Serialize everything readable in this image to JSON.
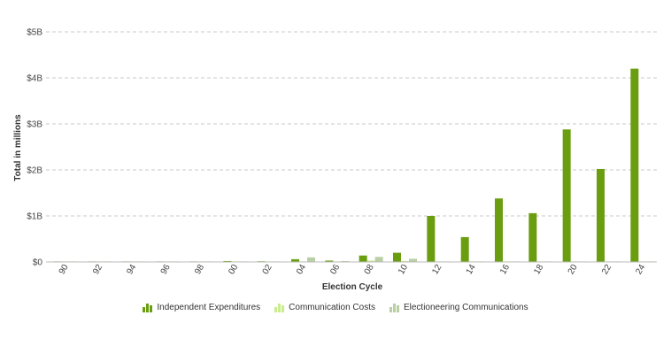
{
  "chart_data": {
    "type": "bar",
    "xlabel": "Election Cycle",
    "ylabel": "Total in millions",
    "ylim": [
      0,
      5000
    ],
    "y_ticks": [
      {
        "value": 0,
        "label": "$0"
      },
      {
        "value": 1000,
        "label": "$1B"
      },
      {
        "value": 2000,
        "label": "$2B"
      },
      {
        "value": 3000,
        "label": "$3B"
      },
      {
        "value": 4000,
        "label": "$4B"
      },
      {
        "value": 5000,
        "label": "$5B"
      }
    ],
    "grid": true,
    "legend_position": "bottom",
    "categories": [
      "90",
      "92",
      "94",
      "96",
      "98",
      "00",
      "02",
      "04",
      "06",
      "08",
      "10",
      "12",
      "14",
      "16",
      "18",
      "20",
      "22",
      "24"
    ],
    "series": [
      {
        "name": "Independent Expenditures",
        "color": "#6a9e10",
        "values": [
          5,
          10,
          5,
          10,
          10,
          20,
          15,
          60,
          30,
          140,
          200,
          1000,
          540,
          1380,
          1060,
          2880,
          2020,
          4200
        ]
      },
      {
        "name": "Communication Costs",
        "color": "#c9ec8c",
        "values": [
          2,
          2,
          2,
          2,
          2,
          10,
          3,
          10,
          10,
          30,
          20,
          10,
          5,
          10,
          5,
          10,
          5,
          5
        ]
      },
      {
        "name": "Electioneering Communications",
        "color": "#bacfa6",
        "values": [
          0,
          0,
          0,
          0,
          0,
          10,
          5,
          100,
          20,
          110,
          70,
          5,
          5,
          5,
          5,
          10,
          5,
          5
        ]
      }
    ]
  }
}
